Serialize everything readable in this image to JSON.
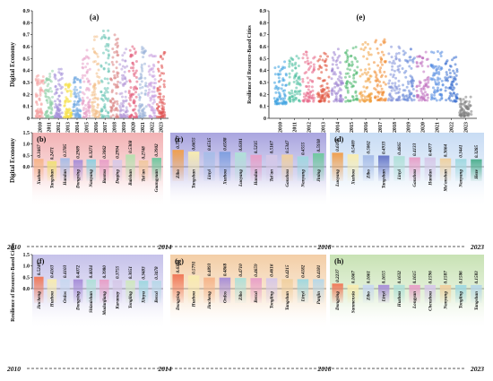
{
  "chart_data": [
    {
      "id": "a",
      "panel_label": "(a)",
      "type": "scatter",
      "ylabel": "Digital Economy",
      "ylim": [
        0,
        0.9
      ],
      "yticks": [
        "0",
        "0.1",
        "0.2",
        "0.3",
        "0.4",
        "0.5",
        "0.6",
        "0.7",
        "0.8",
        "0.9"
      ],
      "categories": [
        "2010",
        "2011",
        "2012",
        "2013",
        "2014",
        "2015",
        "2016",
        "2017",
        "2018",
        "2019",
        "2020",
        "2021",
        "2022",
        "2023"
      ],
      "spread": [
        [
          0.01,
          0.36
        ],
        [
          0.01,
          0.4
        ],
        [
          0.01,
          0.42
        ],
        [
          0.01,
          0.3
        ],
        [
          0.01,
          0.35
        ],
        [
          0.01,
          0.6
        ],
        [
          0.01,
          0.7
        ],
        [
          0.01,
          0.75
        ],
        [
          0.01,
          0.73
        ],
        [
          0.01,
          0.58
        ],
        [
          0.01,
          0.6
        ],
        [
          0.01,
          0.62
        ],
        [
          0.01,
          0.55
        ],
        [
          0.01,
          0.57
        ]
      ],
      "colors": [
        "#f4a3a3",
        "#8fd0a8",
        "#a48fd8",
        "#f5e04a",
        "#6fa8e0",
        "#e8a0c8",
        "#f3c08a",
        "#66c2b3",
        "#d98080",
        "#b69ad9",
        "#e25b7a",
        "#9ab2d9",
        "#c9a0e0",
        "#e05050"
      ]
    },
    {
      "id": "e",
      "panel_label": "(e)",
      "type": "scatter",
      "ylabel": "Resilience of Resource-Based Cities",
      "ylim": [
        0,
        0.9
      ],
      "yticks": [
        "0",
        "0.1",
        "0.2",
        "0.3",
        "0.4",
        "0.5",
        "0.6",
        "0.7",
        "0.8",
        "0.9"
      ],
      "categories": [
        "2010",
        "2011",
        "2012",
        "2013",
        "2014",
        "2015",
        "2016",
        "2017",
        "2018",
        "2019",
        "2020",
        "2021",
        "2022",
        "2023"
      ],
      "spread": [
        [
          0.12,
          0.52
        ],
        [
          0.14,
          0.54
        ],
        [
          0.14,
          0.56
        ],
        [
          0.14,
          0.55
        ],
        [
          0.14,
          0.58
        ],
        [
          0.14,
          0.6
        ],
        [
          0.14,
          0.64
        ],
        [
          0.15,
          0.66
        ],
        [
          0.15,
          0.62
        ],
        [
          0.15,
          0.58
        ],
        [
          0.15,
          0.56
        ],
        [
          0.15,
          0.56
        ],
        [
          0.14,
          0.52
        ],
        [
          0.02,
          0.18
        ]
      ],
      "colors": [
        "#3aa0e0",
        "#4fc0a0",
        "#e86a8a",
        "#e0503a",
        "#9a80d0",
        "#4fb870",
        "#f0a040",
        "#f08a30",
        "#8090d8",
        "#6a8ad8",
        "#c070c0",
        "#5088e0",
        "#3a70d0",
        "#808080"
      ]
    },
    {
      "id": "b",
      "panel_label": "(b)",
      "type": "bar",
      "ylabel": "Digital Economy",
      "ylim": [
        0,
        1.5
      ],
      "yticks": [
        "0.0",
        "0.5",
        "1.0",
        "1.5"
      ],
      "bg": "#f2b2b4",
      "categories": [
        "Xuzhou",
        "Tangshan",
        "Handan",
        "Dongying",
        "Nanyang",
        "Baotou",
        "Daqing",
        "Baishan",
        "Tai'an",
        "Guangyuan"
      ],
      "values": [
        0.3467,
        0.2471,
        0.3785,
        0.2989,
        0.3271,
        0.3062,
        0.2994,
        0.5368,
        0.2748,
        0.3902
      ],
      "labels": [
        "0.3467",
        "0.2471",
        "0.3785",
        "0.2989",
        "0.3271",
        "0.3062",
        "0.2994",
        "0.5368",
        "0.2748",
        "0.3902"
      ],
      "colors": [
        "#f6b58a",
        "#f0e07a",
        "#a7bde8",
        "#a88fd8",
        "#8fd0e0",
        "#e8a0c8",
        "#d6c8e8",
        "#b8e0b0",
        "#f0c8a0",
        "#70c8a0"
      ]
    },
    {
      "id": "c",
      "panel_label": "(c)",
      "type": "bar",
      "ylim": [
        0,
        1.5
      ],
      "bg": "#a9a5df",
      "categories": [
        "Zibo",
        "Tangshan",
        "Linyi",
        "Xuzhou",
        "Luoyang",
        "Handan",
        "Tai'an",
        "Ganzhou",
        "Nanyang",
        "Jining"
      ],
      "values": [
        0.7427,
        0.6655,
        0.6515,
        0.6588,
        0.6301,
        0.5235,
        0.5167,
        0.5347,
        0.4555,
        0.5938
      ],
      "labels": [
        "0.7427",
        "0.6655",
        "0.6515",
        "0.6588",
        "0.6301",
        "0.5235",
        "0.5167",
        "0.5347",
        "0.4555",
        "0.5938"
      ],
      "colors": [
        "#f0a050",
        "#f8ecb0",
        "#a7bde8",
        "#80a0e0",
        "#b0e0d8",
        "#e8a0c8",
        "#d6c8e8",
        "#f0d0a0",
        "#a0d8e0",
        "#70c8a0"
      ]
    },
    {
      "id": "d",
      "panel_label": "(d)",
      "type": "bar",
      "ylim": [
        0,
        1.5
      ],
      "bg": "#c8dcf4",
      "categories": [
        "Luoyang",
        "Xuzhou",
        "Zibo",
        "Tangshan",
        "Linyi",
        "Ganzhou",
        "Handan",
        "Ma'anshan",
        "Nanyang",
        "Heze"
      ],
      "values": [
        0.6169,
        0.5469,
        0.5062,
        0.4933,
        0.4665,
        0.4133,
        0.4077,
        0.3664,
        0.3441,
        0.3285
      ],
      "labels": [
        "0.6169",
        "0.5469",
        "0.5062",
        "0.4933",
        "0.4665",
        "0.4133",
        "0.4077",
        "0.3664",
        "0.3441",
        "0.3285"
      ],
      "colors": [
        "#f0a050",
        "#f8ecb0",
        "#a7bde8",
        "#6878c8",
        "#b0e0d8",
        "#e8a0c8",
        "#d6c8e8",
        "#f0d0a0",
        "#a0d8e0",
        "#50b090"
      ]
    },
    {
      "id": "f",
      "panel_label": "(f)",
      "type": "bar",
      "ylabel": "Resilience of Resource-Based Cities",
      "ylim": [
        0,
        1.5
      ],
      "yticks": [
        "0.0",
        "0.5",
        "1.0",
        "1.5"
      ],
      "bg": "#c6c2ea",
      "categories": [
        "Jincheng",
        "Huzhou",
        "Ordos",
        "Dongying",
        "Shizuishan",
        "Mudanjiang",
        "Karamay",
        "Tongling",
        "Xinyu",
        "Benxi"
      ],
      "values": [
        0.5249,
        0.4163,
        0.4103,
        0.4072,
        0.4024,
        0.398,
        0.3755,
        0.3651,
        0.3483,
        0.3478
      ],
      "labels": [
        "0.5249",
        "0.4163",
        "0.4103",
        "0.4072",
        "0.4024",
        "0.3980",
        "0.3755",
        "0.3651",
        "0.3483",
        "0.3478"
      ],
      "colors": [
        "#f07a5a",
        "#f8ecb0",
        "#c8d8f0",
        "#a88fd8",
        "#b0e0d8",
        "#e8a0c8",
        "#d6c8e8",
        "#d0e8c0",
        "#a0d8e0",
        "#b8d8e8"
      ]
    },
    {
      "id": "g",
      "panel_label": "(g)",
      "type": "bar",
      "ylim": [
        0,
        1.5
      ],
      "bg": "#f3cea6",
      "categories": [
        "Dongying",
        "Huzhou",
        "Jincheng",
        "Ordos",
        "Zibo",
        "Benxi",
        "Tongling",
        "Tangshan",
        "Linyi",
        "Panjin"
      ],
      "values": [
        0.634,
        0.5791,
        0.4893,
        0.4868,
        0.471,
        0.4659,
        0.4616,
        0.4215,
        0.4182,
        0.4181
      ],
      "labels": [
        "0.6340",
        "0.5791",
        "0.4893",
        "0.4868",
        "0.4710",
        "0.4659",
        "0.4616",
        "0.4215",
        "0.4182",
        "0.4181"
      ],
      "colors": [
        "#f07a5a",
        "#f8ecb0",
        "#f6b58a",
        "#a88fd8",
        "#b0e0d8",
        "#e8a0c8",
        "#d6c8e8",
        "#f0d0a0",
        "#a0d8e0",
        "#b8d8e8"
      ]
    },
    {
      "id": "h",
      "panel_label": "(h)",
      "type": "bar",
      "ylim": [
        0,
        1.5
      ],
      "bg": "#c8e2b4",
      "categories": [
        "Dongying",
        "Sanmenxia",
        "Zibo",
        "Linyi",
        "Huzhou",
        "Longyan",
        "Chenzhou",
        "Nanyang",
        "Tongling",
        "Tangshan"
      ],
      "values": [
        0.2237,
        0.1667,
        0.1661,
        0.1655,
        0.1632,
        0.1615,
        0.1596,
        0.1587,
        0.1586,
        0.1583
      ],
      "labels": [
        "0.2237",
        "0.1667",
        "0.1661",
        "0.1655",
        "0.1632",
        "0.1615",
        "0.1596",
        "0.1587",
        "0.1586",
        "0.1583"
      ],
      "colors": [
        "#f07a5a",
        "#f8ecb0",
        "#c8d8f0",
        "#a88fd8",
        "#b0e0d8",
        "#e8a0c8",
        "#d6c8e8",
        "#f0d0a0",
        "#a0d8e0",
        "#b8d8e8"
      ]
    }
  ],
  "timeline": [
    "2010",
    "2014",
    "2018",
    "2023"
  ]
}
